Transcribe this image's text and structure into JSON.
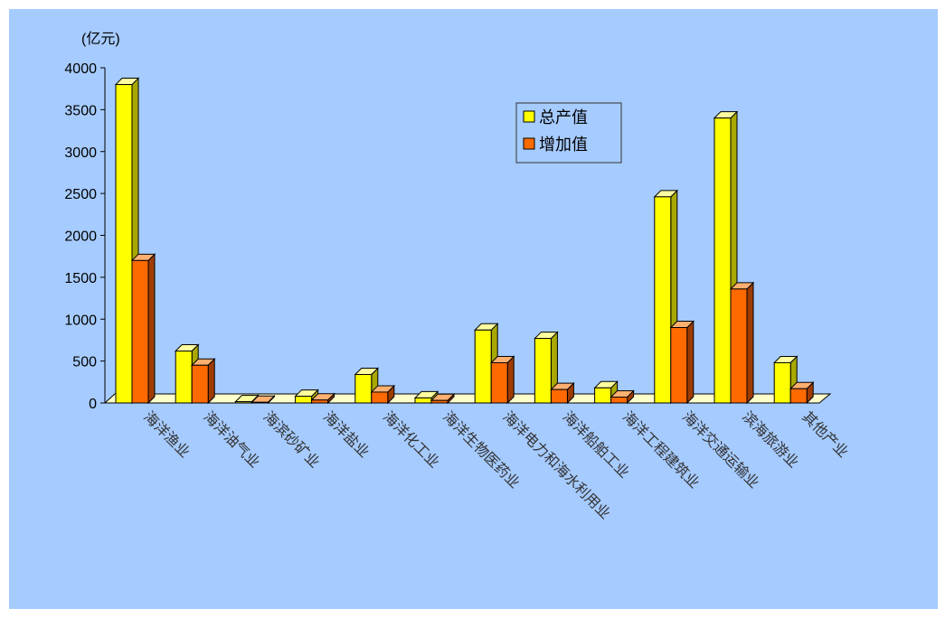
{
  "chart_data": {
    "type": "bar",
    "title": "",
    "unit_label": "(亿元)",
    "xlabel": "",
    "ylabel": "",
    "ylim": [
      0,
      4000
    ],
    "yticks": [
      0,
      500,
      1000,
      1500,
      2000,
      2500,
      3000,
      3500,
      4000
    ],
    "categories": [
      "海洋渔业",
      "海洋油气业",
      "海滨砂矿业",
      "海洋盐业",
      "海洋化工业",
      "海洋生物医药业",
      "海洋电力和海水利用业",
      "海洋船舶工业",
      "海洋工程建筑业",
      "海洋交通运输业",
      "滨海旅游业",
      "其他产业"
    ],
    "series": [
      {
        "name": "总产值",
        "color": "#ffff00",
        "side_color": "#a8a800",
        "top_color": "#ffffa0",
        "values": [
          3800,
          620,
          15,
          80,
          340,
          60,
          870,
          770,
          180,
          2460,
          3400,
          480
        ]
      },
      {
        "name": "增加值",
        "color": "#ff6a00",
        "side_color": "#9e3c00",
        "top_color": "#ffb070",
        "values": [
          1700,
          450,
          8,
          35,
          130,
          30,
          480,
          160,
          70,
          900,
          1360,
          170
        ]
      }
    ],
    "legend_position": "top-center",
    "grid": false
  },
  "colors": {
    "background": "#a6cbff",
    "floor": "#ffffcc",
    "axis": "#000000"
  }
}
